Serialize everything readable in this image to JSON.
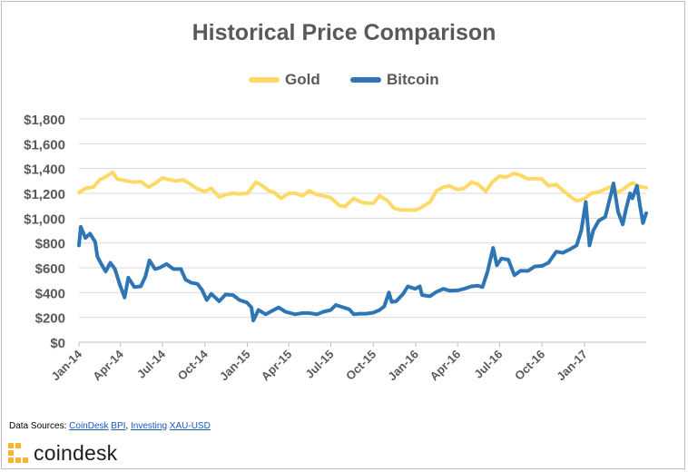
{
  "chart_data": {
    "type": "line",
    "title": "Historical Price Comparison",
    "xlabel": "",
    "ylabel": "",
    "x_ticks": [
      "Jan-14",
      "Apr-14",
      "Jul-14",
      "Oct-14",
      "Jan-15",
      "Apr-15",
      "Jul-15",
      "Oct-15",
      "Jan-16",
      "Apr-16",
      "Jul-16",
      "Oct-16",
      "Jan-17"
    ],
    "y_ticks": [
      "$0",
      "$200",
      "$400",
      "$600",
      "$800",
      "$1,000",
      "$1,200",
      "$1,400",
      "$1,600",
      "$1,800"
    ],
    "ylim": [
      0,
      1800
    ],
    "xlim": [
      "2014-01-01",
      "2017-05-15"
    ],
    "grid": true,
    "legend_position": "top",
    "series": [
      {
        "name": "Gold",
        "color": "#ffd966",
        "points": [
          [
            "2014-01-01",
            1205
          ],
          [
            "2014-01-15",
            1240
          ],
          [
            "2014-02-01",
            1250
          ],
          [
            "2014-02-15",
            1310
          ],
          [
            "2014-03-01",
            1335
          ],
          [
            "2014-03-15",
            1370
          ],
          [
            "2014-03-25",
            1315
          ],
          [
            "2014-04-15",
            1300
          ],
          [
            "2014-05-01",
            1290
          ],
          [
            "2014-05-15",
            1295
          ],
          [
            "2014-06-01",
            1250
          ],
          [
            "2014-06-15",
            1280
          ],
          [
            "2014-07-01",
            1325
          ],
          [
            "2014-07-15",
            1310
          ],
          [
            "2014-08-01",
            1300
          ],
          [
            "2014-08-15",
            1310
          ],
          [
            "2014-09-01",
            1270
          ],
          [
            "2014-09-15",
            1235
          ],
          [
            "2014-10-01",
            1215
          ],
          [
            "2014-10-15",
            1240
          ],
          [
            "2014-11-01",
            1170
          ],
          [
            "2014-11-15",
            1190
          ],
          [
            "2014-12-01",
            1200
          ],
          [
            "2014-12-15",
            1195
          ],
          [
            "2015-01-01",
            1200
          ],
          [
            "2015-01-20",
            1290
          ],
          [
            "2015-02-01",
            1265
          ],
          [
            "2015-02-15",
            1225
          ],
          [
            "2015-03-01",
            1205
          ],
          [
            "2015-03-15",
            1160
          ],
          [
            "2015-04-01",
            1200
          ],
          [
            "2015-04-15",
            1200
          ],
          [
            "2015-05-01",
            1180
          ],
          [
            "2015-05-15",
            1220
          ],
          [
            "2015-06-01",
            1190
          ],
          [
            "2015-06-15",
            1180
          ],
          [
            "2015-07-01",
            1165
          ],
          [
            "2015-07-20",
            1100
          ],
          [
            "2015-08-01",
            1095
          ],
          [
            "2015-08-20",
            1160
          ],
          [
            "2015-09-01",
            1135
          ],
          [
            "2015-09-15",
            1120
          ],
          [
            "2015-10-01",
            1120
          ],
          [
            "2015-10-15",
            1180
          ],
          [
            "2015-11-01",
            1140
          ],
          [
            "2015-11-15",
            1080
          ],
          [
            "2015-12-01",
            1065
          ],
          [
            "2015-12-15",
            1065
          ],
          [
            "2016-01-01",
            1065
          ],
          [
            "2016-01-15",
            1090
          ],
          [
            "2016-02-01",
            1130
          ],
          [
            "2016-02-15",
            1220
          ],
          [
            "2016-03-01",
            1250
          ],
          [
            "2016-03-15",
            1260
          ],
          [
            "2016-04-01",
            1230
          ],
          [
            "2016-04-15",
            1240
          ],
          [
            "2016-05-01",
            1290
          ],
          [
            "2016-05-15",
            1275
          ],
          [
            "2016-06-01",
            1215
          ],
          [
            "2016-06-15",
            1290
          ],
          [
            "2016-07-01",
            1340
          ],
          [
            "2016-07-15",
            1330
          ],
          [
            "2016-08-01",
            1360
          ],
          [
            "2016-08-15",
            1345
          ],
          [
            "2016-09-01",
            1315
          ],
          [
            "2016-09-15",
            1320
          ],
          [
            "2016-10-01",
            1315
          ],
          [
            "2016-10-15",
            1260
          ],
          [
            "2016-11-01",
            1270
          ],
          [
            "2016-11-15",
            1225
          ],
          [
            "2016-12-01",
            1175
          ],
          [
            "2016-12-15",
            1140
          ],
          [
            "2017-01-01",
            1155
          ],
          [
            "2017-01-15",
            1200
          ],
          [
            "2017-02-01",
            1210
          ],
          [
            "2017-02-15",
            1235
          ],
          [
            "2017-03-01",
            1255
          ],
          [
            "2017-03-15",
            1205
          ],
          [
            "2017-04-01",
            1250
          ],
          [
            "2017-04-15",
            1285
          ],
          [
            "2017-05-01",
            1255
          ],
          [
            "2017-05-15",
            1245
          ]
        ]
      },
      {
        "name": "Bitcoin",
        "color": "#2e75b6",
        "points": [
          [
            "2014-01-01",
            780
          ],
          [
            "2014-01-05",
            930
          ],
          [
            "2014-01-15",
            840
          ],
          [
            "2014-01-25",
            875
          ],
          [
            "2014-02-05",
            810
          ],
          [
            "2014-02-10",
            690
          ],
          [
            "2014-02-20",
            620
          ],
          [
            "2014-02-28",
            570
          ],
          [
            "2014-03-10",
            640
          ],
          [
            "2014-03-20",
            590
          ],
          [
            "2014-03-31",
            460
          ],
          [
            "2014-04-10",
            360
          ],
          [
            "2014-04-18",
            520
          ],
          [
            "2014-05-01",
            445
          ],
          [
            "2014-05-15",
            450
          ],
          [
            "2014-05-25",
            530
          ],
          [
            "2014-06-03",
            660
          ],
          [
            "2014-06-15",
            590
          ],
          [
            "2014-06-25",
            600
          ],
          [
            "2014-07-10",
            630
          ],
          [
            "2014-07-25",
            590
          ],
          [
            "2014-08-10",
            590
          ],
          [
            "2014-08-20",
            505
          ],
          [
            "2014-09-01",
            480
          ],
          [
            "2014-09-15",
            470
          ],
          [
            "2014-09-25",
            420
          ],
          [
            "2014-10-05",
            340
          ],
          [
            "2014-10-15",
            390
          ],
          [
            "2014-11-01",
            330
          ],
          [
            "2014-11-15",
            385
          ],
          [
            "2014-12-01",
            380
          ],
          [
            "2014-12-15",
            340
          ],
          [
            "2014-12-31",
            320
          ],
          [
            "2015-01-10",
            280
          ],
          [
            "2015-01-14",
            175
          ],
          [
            "2015-01-25",
            260
          ],
          [
            "2015-02-10",
            225
          ],
          [
            "2015-02-25",
            255
          ],
          [
            "2015-03-10",
            280
          ],
          [
            "2015-03-25",
            245
          ],
          [
            "2015-04-15",
            225
          ],
          [
            "2015-05-01",
            235
          ],
          [
            "2015-05-15",
            235
          ],
          [
            "2015-06-01",
            225
          ],
          [
            "2015-06-15",
            245
          ],
          [
            "2015-07-01",
            260
          ],
          [
            "2015-07-12",
            300
          ],
          [
            "2015-07-25",
            285
          ],
          [
            "2015-08-10",
            265
          ],
          [
            "2015-08-20",
            225
          ],
          [
            "2015-09-01",
            230
          ],
          [
            "2015-09-15",
            230
          ],
          [
            "2015-10-01",
            238
          ],
          [
            "2015-10-15",
            260
          ],
          [
            "2015-10-25",
            290
          ],
          [
            "2015-11-04",
            400
          ],
          [
            "2015-11-10",
            325
          ],
          [
            "2015-11-20",
            330
          ],
          [
            "2015-12-05",
            390
          ],
          [
            "2015-12-15",
            450
          ],
          [
            "2015-12-31",
            430
          ],
          [
            "2016-01-10",
            450
          ],
          [
            "2016-01-15",
            380
          ],
          [
            "2016-02-01",
            370
          ],
          [
            "2016-02-15",
            405
          ],
          [
            "2016-03-01",
            430
          ],
          [
            "2016-03-15",
            415
          ],
          [
            "2016-04-01",
            418
          ],
          [
            "2016-04-15",
            430
          ],
          [
            "2016-05-01",
            450
          ],
          [
            "2016-05-15",
            455
          ],
          [
            "2016-05-25",
            445
          ],
          [
            "2016-06-05",
            570
          ],
          [
            "2016-06-17",
            760
          ],
          [
            "2016-06-25",
            620
          ],
          [
            "2016-07-05",
            675
          ],
          [
            "2016-07-20",
            665
          ],
          [
            "2016-08-02",
            540
          ],
          [
            "2016-08-15",
            575
          ],
          [
            "2016-09-01",
            575
          ],
          [
            "2016-09-15",
            610
          ],
          [
            "2016-10-01",
            615
          ],
          [
            "2016-10-15",
            640
          ],
          [
            "2016-11-01",
            730
          ],
          [
            "2016-11-15",
            720
          ],
          [
            "2016-12-01",
            750
          ],
          [
            "2016-12-15",
            780
          ],
          [
            "2016-12-25",
            900
          ],
          [
            "2017-01-04",
            1130
          ],
          [
            "2017-01-12",
            780
          ],
          [
            "2017-01-20",
            900
          ],
          [
            "2017-02-01",
            980
          ],
          [
            "2017-02-15",
            1010
          ],
          [
            "2017-02-28",
            1200
          ],
          [
            "2017-03-05",
            1280
          ],
          [
            "2017-03-15",
            1050
          ],
          [
            "2017-03-25",
            950
          ],
          [
            "2017-04-01",
            1070
          ],
          [
            "2017-04-10",
            1200
          ],
          [
            "2017-04-15",
            1160
          ],
          [
            "2017-04-25",
            1260
          ],
          [
            "2017-05-01",
            1110
          ],
          [
            "2017-05-08",
            960
          ],
          [
            "2017-05-15",
            1040
          ]
        ]
      }
    ]
  },
  "sources": {
    "prefix": "Data Sources:",
    "link1": "CoinDesk",
    "link2": "BPI",
    "sep": ",",
    "link3": "Investing",
    "link4": "XAU-USD"
  },
  "logo": {
    "text": "coindesk",
    "icon": "coindesk-logo-icon",
    "color": "#f7b731"
  }
}
